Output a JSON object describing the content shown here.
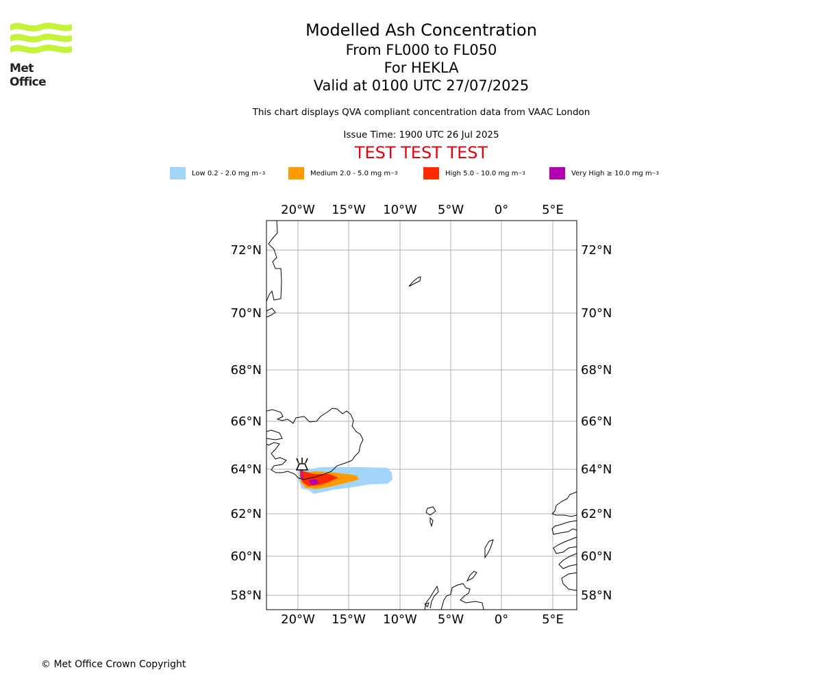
{
  "logo": {
    "name": "Met Office",
    "color": "#c6f23a"
  },
  "title": {
    "line1": "Modelled Ash Concentration",
    "line2": "From FL000 to FL050",
    "line3": "For HEKLA",
    "line4": "Valid at 0100 UTC 27/07/2025"
  },
  "subtitle": "This chart displays QVA compliant concentration data from VAAC London",
  "issue_time": "Issue Time: 1900 UTC 26 Jul 2025",
  "test_banner": "TEST TEST TEST",
  "legend": [
    {
      "label": "Low 0.2 - 2.0 mg m",
      "color": "#a3d4fa"
    },
    {
      "label": "Medium 2.0 - 5.0 mg m",
      "color": "#ff9a00"
    },
    {
      "label": "High 5.0 - 10.0 mg m",
      "color": "#ff2a00"
    },
    {
      "label": "Very High  ≥  10.0 mg m",
      "color": "#b000b0"
    }
  ],
  "legend_unit_exponent": "−3",
  "map": {
    "lon_labels": [
      "20°W",
      "15°W",
      "10°W",
      "5°W",
      "0°",
      "5°E"
    ],
    "lat_labels": [
      "72°N",
      "70°N",
      "68°N",
      "66°N",
      "64°N",
      "62°N",
      "60°N",
      "58°N"
    ],
    "volcano": "HEKLA"
  },
  "copyright": "© Met Office Crown Copyright"
}
